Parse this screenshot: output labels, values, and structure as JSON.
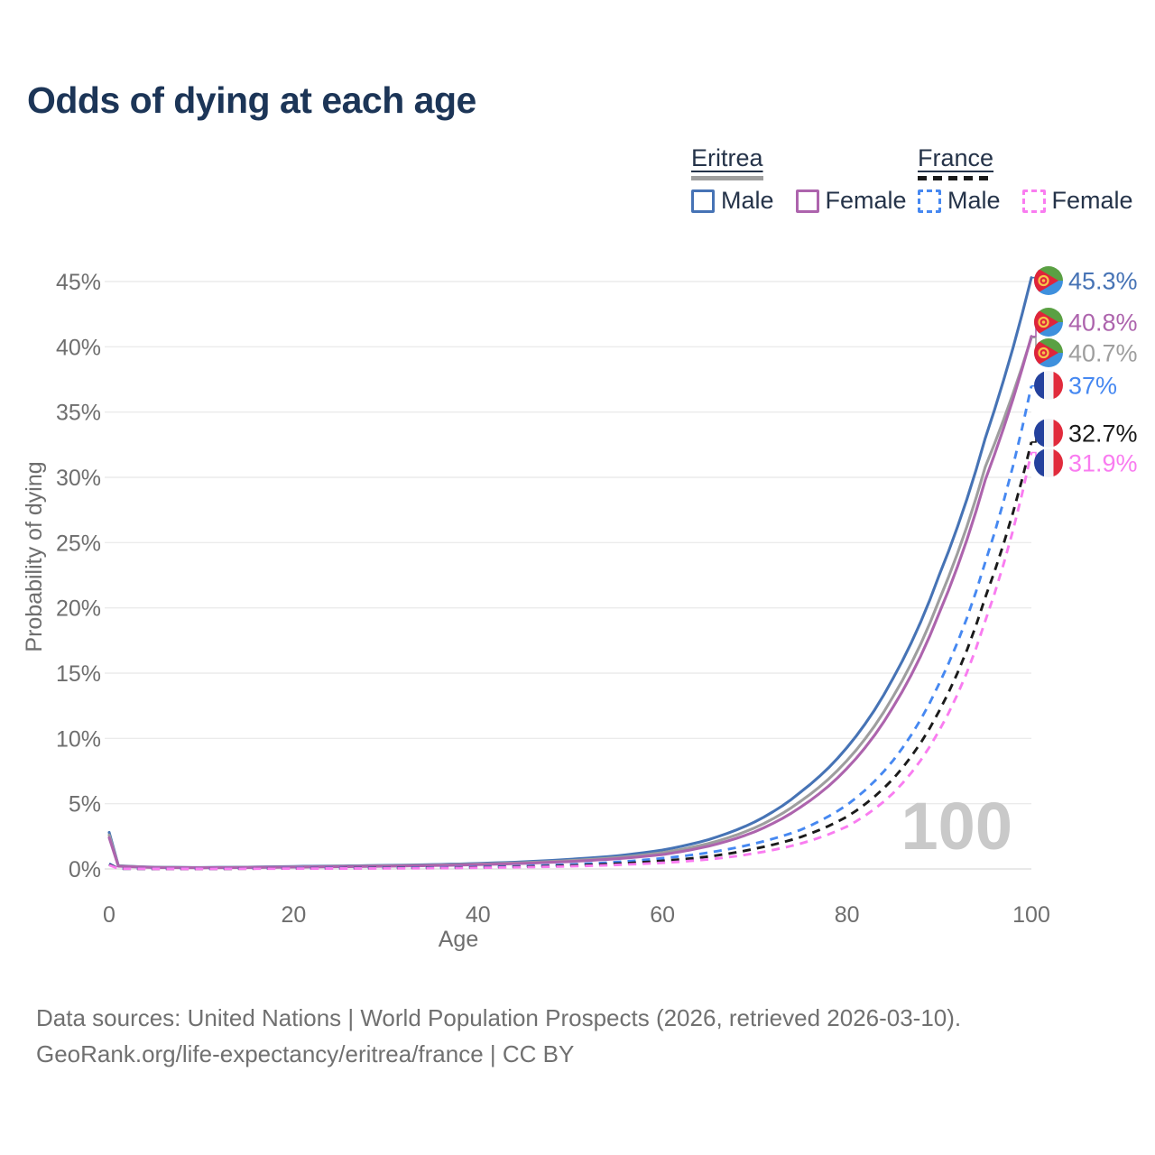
{
  "title": "Odds of dying at each age",
  "colors": {
    "background": "#ffffff",
    "title_text": "#1c3557",
    "legend_text": "#253349",
    "axis_text": "#6e6e6e",
    "grid_line": "#ebebeb",
    "zero_line": "#e2e2e2",
    "watermark": "#c9c9c9",
    "footer_text": "#707070",
    "eritrea_male": "#4673b5",
    "eritrea_total": "#9e9e9e",
    "eritrea_female": "#ad64ad",
    "france_male": "#4688f1",
    "france_total": "#1a1a1a",
    "france_female": "#f97cf0"
  },
  "legend": {
    "groups": [
      {
        "label": "Eritrea",
        "line_style": "solid",
        "swatch_color": "#9e9e9e",
        "items": [
          {
            "label": "Male",
            "color": "#4673b5",
            "dashed": false
          },
          {
            "label": "Female",
            "color": "#ad64ad",
            "dashed": false
          }
        ]
      },
      {
        "label": "France",
        "line_style": "dashed",
        "swatch_color": "#1a1a1a",
        "items": [
          {
            "label": "Male",
            "color": "#4688f1",
            "dashed": true
          },
          {
            "label": "Female",
            "color": "#f97cf0",
            "dashed": true
          }
        ]
      }
    ]
  },
  "chart_data": {
    "type": "line",
    "title": "Odds of dying at each age",
    "xlabel": "Age",
    "ylabel": "Probability of dying",
    "xlim": [
      0,
      100
    ],
    "ylim": [
      0,
      45
    ],
    "x_ticks": [
      0,
      20,
      40,
      60,
      80,
      100
    ],
    "y_ticks": [
      0,
      5,
      10,
      15,
      20,
      25,
      30,
      35,
      40,
      45
    ],
    "y_tick_suffix": "%",
    "grid": true,
    "legend_position": "top-right",
    "watermark": "100",
    "series": [
      {
        "name": "Eritrea Male",
        "color": "#4673b5",
        "dash": null,
        "flag": "eritrea",
        "end_label": "45.3%",
        "points": [
          [
            0,
            2.8
          ],
          [
            1,
            0.25
          ],
          [
            5,
            0.13
          ],
          [
            10,
            0.11
          ],
          [
            15,
            0.14
          ],
          [
            20,
            0.19
          ],
          [
            25,
            0.23
          ],
          [
            30,
            0.27
          ],
          [
            35,
            0.33
          ],
          [
            40,
            0.42
          ],
          [
            45,
            0.55
          ],
          [
            50,
            0.74
          ],
          [
            55,
            1.0
          ],
          [
            60,
            1.45
          ],
          [
            65,
            2.25
          ],
          [
            70,
            3.6
          ],
          [
            75,
            5.9
          ],
          [
            80,
            9.3
          ],
          [
            85,
            14.6
          ],
          [
            90,
            22.5
          ],
          [
            95,
            33.0
          ],
          [
            100,
            45.3
          ]
        ]
      },
      {
        "name": "Eritrea Total",
        "color": "#9e9e9e",
        "dash": null,
        "flag": "eritrea",
        "end_label": "40.7%",
        "points": [
          [
            0,
            2.6
          ],
          [
            1,
            0.23
          ],
          [
            5,
            0.12
          ],
          [
            10,
            0.1
          ],
          [
            15,
            0.12
          ],
          [
            20,
            0.16
          ],
          [
            25,
            0.2
          ],
          [
            30,
            0.24
          ],
          [
            35,
            0.29
          ],
          [
            40,
            0.37
          ],
          [
            45,
            0.48
          ],
          [
            50,
            0.64
          ],
          [
            55,
            0.87
          ],
          [
            60,
            1.25
          ],
          [
            65,
            1.95
          ],
          [
            70,
            3.15
          ],
          [
            75,
            5.2
          ],
          [
            80,
            8.3
          ],
          [
            85,
            13.2
          ],
          [
            90,
            20.6
          ],
          [
            95,
            30.8
          ],
          [
            100,
            40.7
          ]
        ]
      },
      {
        "name": "Eritrea Female",
        "color": "#ad64ad",
        "dash": null,
        "flag": "eritrea",
        "end_label": "40.8%",
        "points": [
          [
            0,
            2.4
          ],
          [
            1,
            0.21
          ],
          [
            5,
            0.11
          ],
          [
            10,
            0.09
          ],
          [
            15,
            0.11
          ],
          [
            20,
            0.14
          ],
          [
            25,
            0.17
          ],
          [
            30,
            0.21
          ],
          [
            35,
            0.26
          ],
          [
            40,
            0.33
          ],
          [
            45,
            0.43
          ],
          [
            50,
            0.57
          ],
          [
            55,
            0.78
          ],
          [
            60,
            1.1
          ],
          [
            65,
            1.75
          ],
          [
            70,
            2.85
          ],
          [
            75,
            4.75
          ],
          [
            80,
            7.7
          ],
          [
            85,
            12.4
          ],
          [
            90,
            19.6
          ],
          [
            95,
            29.8
          ],
          [
            100,
            40.8
          ]
        ]
      },
      {
        "name": "France Male",
        "color": "#4688f1",
        "dash": [
          9,
          7
        ],
        "flag": "france",
        "end_label": "37%",
        "points": [
          [
            0,
            0.4
          ],
          [
            1,
            0.03
          ],
          [
            5,
            0.012
          ],
          [
            10,
            0.012
          ],
          [
            15,
            0.03
          ],
          [
            20,
            0.06
          ],
          [
            25,
            0.07
          ],
          [
            30,
            0.09
          ],
          [
            35,
            0.11
          ],
          [
            40,
            0.15
          ],
          [
            45,
            0.22
          ],
          [
            50,
            0.34
          ],
          [
            55,
            0.53
          ],
          [
            60,
            0.82
          ],
          [
            65,
            1.25
          ],
          [
            70,
            1.95
          ],
          [
            75,
            3.0
          ],
          [
            80,
            4.9
          ],
          [
            85,
            8.3
          ],
          [
            90,
            14.2
          ],
          [
            95,
            23.5
          ],
          [
            100,
            37.0
          ]
        ]
      },
      {
        "name": "France Total",
        "color": "#1a1a1a",
        "dash": [
          9,
          7
        ],
        "flag": "france",
        "end_label": "32.7%",
        "points": [
          [
            0,
            0.35
          ],
          [
            1,
            0.025
          ],
          [
            5,
            0.01
          ],
          [
            10,
            0.01
          ],
          [
            15,
            0.022
          ],
          [
            20,
            0.042
          ],
          [
            25,
            0.05
          ],
          [
            30,
            0.063
          ],
          [
            35,
            0.08
          ],
          [
            40,
            0.115
          ],
          [
            45,
            0.17
          ],
          [
            50,
            0.26
          ],
          [
            55,
            0.4
          ],
          [
            60,
            0.62
          ],
          [
            65,
            0.95
          ],
          [
            70,
            1.55
          ],
          [
            75,
            2.45
          ],
          [
            80,
            4.0
          ],
          [
            85,
            6.9
          ],
          [
            90,
            12.1
          ],
          [
            95,
            20.8
          ],
          [
            100,
            32.7
          ]
        ]
      },
      {
        "name": "France Female",
        "color": "#f97cf0",
        "dash": [
          9,
          7
        ],
        "flag": "france",
        "end_label": "31.9%",
        "points": [
          [
            0,
            0.3
          ],
          [
            1,
            0.022
          ],
          [
            5,
            0.009
          ],
          [
            10,
            0.009
          ],
          [
            15,
            0.018
          ],
          [
            20,
            0.028
          ],
          [
            25,
            0.035
          ],
          [
            30,
            0.046
          ],
          [
            35,
            0.062
          ],
          [
            40,
            0.09
          ],
          [
            45,
            0.135
          ],
          [
            50,
            0.205
          ],
          [
            55,
            0.31
          ],
          [
            60,
            0.47
          ],
          [
            65,
            0.73
          ],
          [
            70,
            1.2
          ],
          [
            75,
            1.95
          ],
          [
            80,
            3.25
          ],
          [
            85,
            5.8
          ],
          [
            90,
            10.6
          ],
          [
            95,
            19.0
          ],
          [
            100,
            31.9
          ]
        ]
      }
    ]
  },
  "flags": {
    "eritrea": {
      "green": "#5aa043",
      "blue": "#3e90dd",
      "red": "#e0243a",
      "yellow": "#f6c54c"
    },
    "france": {
      "blue": "#24419d",
      "white": "#f4f4f6",
      "red": "#e12b3c"
    }
  },
  "footer": {
    "lines": [
      "Data sources: United Nations | World Population Prospects (2026, retrieved 2026-03-10).",
      "GeoRank.org/life-expectancy/eritrea/france | CC BY"
    ]
  }
}
